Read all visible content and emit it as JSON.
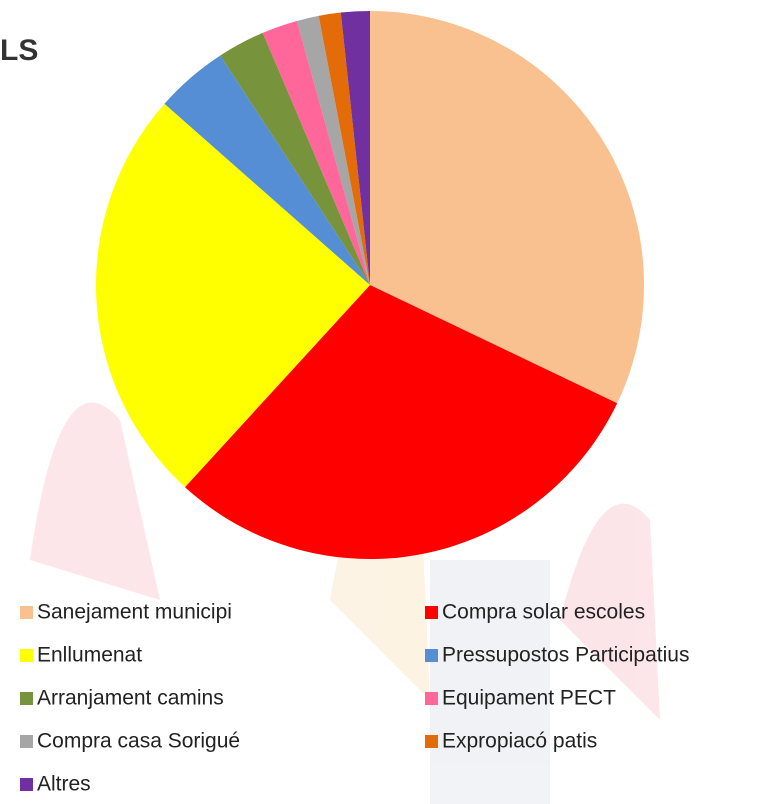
{
  "chart_data": {
    "type": "pie",
    "title": "LS",
    "categories": [
      "Sanejament municipi",
      "Compra solar escoles",
      "Enllumenat",
      "Pressupostos Participatius",
      "Arranjament camins",
      "Equipament PECT",
      "Compra casa Sorigué",
      "Expropiacó patis",
      "Altres"
    ],
    "values": [
      32.1,
      29.7,
      24.7,
      4.3,
      2.8,
      2.1,
      1.3,
      1.3,
      1.7
    ],
    "colors": [
      "#f9c090",
      "#ff0000",
      "#ffff00",
      "#558ed5",
      "#77933c",
      "#ff6699",
      "#a6a6a6",
      "#e36c09",
      "#7030a0"
    ]
  }
}
